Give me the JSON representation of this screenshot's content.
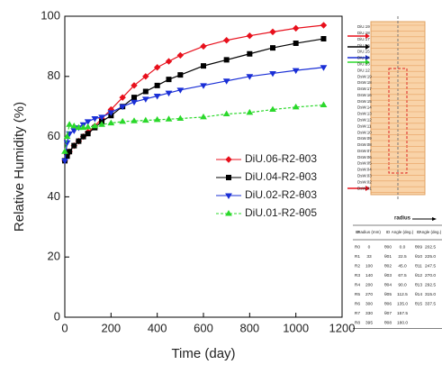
{
  "chart_data": {
    "type": "line",
    "x_label": "Time (day)",
    "y_label": "Relative Humidity (%)",
    "x": [
      0,
      10,
      20,
      40,
      60,
      80,
      100,
      130,
      160,
      200,
      250,
      300,
      350,
      400,
      450,
      500,
      600,
      700,
      800,
      900,
      1000,
      1120
    ],
    "series": [
      {
        "name": "DiU.06-R2-θ03",
        "color": "#e8101c",
        "marker": "diamond",
        "values": [
          52,
          54,
          55,
          57,
          58.5,
          60,
          61.5,
          63.5,
          66,
          69,
          73,
          77,
          80,
          83,
          85,
          87,
          90,
          92,
          93.5,
          94.8,
          96,
          97
        ]
      },
      {
        "name": "DiU.04-R2-θ03",
        "color": "#000000",
        "marker": "square",
        "values": [
          52,
          53.5,
          55,
          57,
          58.5,
          60,
          61,
          63,
          65,
          67,
          70,
          73,
          75,
          77,
          79,
          80.5,
          83.5,
          85.5,
          87.5,
          89.5,
          91,
          92.5
        ]
      },
      {
        "name": "DiU.02-R2-θ03",
        "color": "#1a2fd6",
        "marker": "triangle-down",
        "values": [
          52,
          58,
          61,
          62,
          63,
          64,
          65,
          66,
          66.5,
          68,
          70,
          71.5,
          72.5,
          73.5,
          74.5,
          75.5,
          77,
          78.5,
          80,
          81,
          82,
          83
        ]
      },
      {
        "name": "DiU.01-R2-θ05",
        "color": "#2bd82b",
        "marker": "triangle-up",
        "dashed": true,
        "values": [
          55,
          60,
          64,
          63.5,
          63,
          63,
          63.2,
          63.5,
          64,
          64.5,
          65,
          65.2,
          65.4,
          65.6,
          65.8,
          66,
          66.5,
          67.5,
          68,
          69,
          69.8,
          70.5
        ]
      }
    ],
    "xlim": [
      0,
      1200
    ],
    "xticks": [
      0,
      200,
      400,
      600,
      800,
      1000,
      1200
    ],
    "ylim": [
      0,
      100
    ],
    "yticks": [
      0,
      20,
      40,
      60,
      80,
      100
    ],
    "grid": false
  },
  "inset": {
    "diagram_labels": [
      "DiU.19",
      "DiU.18",
      "DiU.17",
      "DiU.16",
      "DiU.15",
      "DiU.14",
      "DiU.13",
      "DiU.12",
      "DsW.19",
      "DsW.18",
      "DsW.17",
      "DsW.16",
      "DsW.15",
      "DsW.14",
      "DsW.13",
      "DsW.12",
      "DsW.11",
      "DsW.10",
      "DsW.09",
      "DsW.08",
      "DsW.07",
      "DsW.06",
      "DsW.05",
      "DsW.04",
      "DsW.03",
      "DsW.02",
      "DsW.01"
    ],
    "radius_label": "radius",
    "table": {
      "header": [
        "ID",
        "Radius (mm)",
        "ID",
        "Angle (deg.)",
        "ID",
        "Angle (deg.)"
      ],
      "rows": [
        [
          "R0",
          "0",
          "θ00",
          "0.0",
          "θ09",
          "202.5"
        ],
        [
          "R1",
          "33",
          "θ01",
          "22.5",
          "θ10",
          "225.0"
        ],
        [
          "R2",
          "100",
          "θ02",
          "45.0",
          "θ11",
          "247.5"
        ],
        [
          "R3",
          "140",
          "θ03",
          "67.5",
          "θ12",
          "270.0"
        ],
        [
          "R4",
          "200",
          "θ04",
          "90.0",
          "θ13",
          "292.5"
        ],
        [
          "R5",
          "270",
          "θ05",
          "112.5",
          "θ14",
          "315.0"
        ],
        [
          "R6",
          "300",
          "θ06",
          "135.0",
          "θ15",
          "337.5"
        ],
        [
          "R7",
          "330",
          "θ07",
          "157.5",
          "",
          ""
        ],
        [
          "R8",
          "395",
          "θ08",
          "180.0",
          "",
          ""
        ]
      ]
    }
  }
}
